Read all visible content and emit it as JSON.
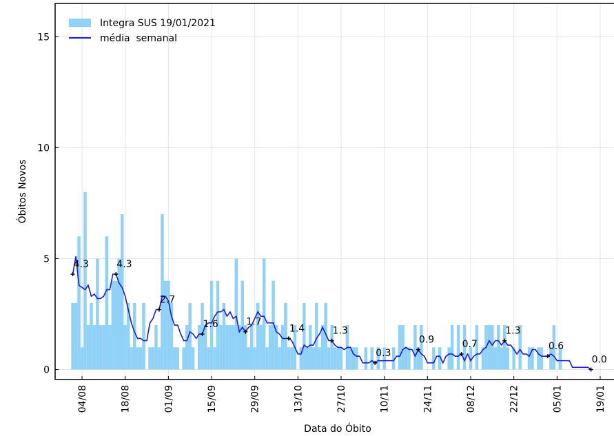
{
  "chart_data": {
    "type": "bar_line",
    "xlabel": "Data do Óbito",
    "ylabel": "Óbitos Novos",
    "categories": [
      null,
      null,
      null,
      "04/08",
      null,
      null,
      null,
      null,
      null,
      null,
      null,
      null,
      null,
      null,
      null,
      null,
      null,
      "18/08",
      null,
      null,
      null,
      null,
      null,
      null,
      null,
      null,
      null,
      null,
      null,
      null,
      null,
      "01/09",
      null,
      null,
      null,
      null,
      null,
      null,
      null,
      null,
      null,
      null,
      null,
      null,
      null,
      "15/09",
      null,
      null,
      null,
      null,
      null,
      null,
      null,
      null,
      null,
      null,
      null,
      null,
      null,
      "29/09",
      null,
      null,
      null,
      null,
      null,
      null,
      null,
      null,
      null,
      null,
      null,
      null,
      null,
      "13/10",
      null,
      null,
      null,
      null,
      null,
      null,
      null,
      null,
      null,
      null,
      null,
      null,
      null,
      "27/10",
      null,
      null,
      null,
      null,
      null,
      null,
      null,
      null,
      null,
      null,
      null,
      null,
      null,
      "10/11",
      null,
      null,
      null,
      null,
      null,
      null,
      null,
      null,
      null,
      null,
      null,
      null,
      null,
      "24/11",
      null,
      null,
      null,
      null,
      null,
      null,
      null,
      null,
      null,
      null,
      null,
      null,
      null,
      "08/12",
      null,
      null,
      null,
      null,
      null,
      null,
      null,
      null,
      null,
      null,
      null,
      null,
      null,
      "22/12",
      null,
      null,
      null,
      null,
      null,
      null,
      null,
      null,
      null,
      null,
      null,
      null,
      null,
      "05/01",
      null,
      null,
      null,
      null,
      null,
      null,
      null,
      null,
      null,
      null,
      null,
      null,
      null,
      "19/01"
    ],
    "series": [
      {
        "name": "Integra SUS 19/01/2021",
        "type": "bar",
        "color": "#8fd1f7",
        "values": [
          3,
          3,
          6,
          1,
          8,
          2,
          3,
          2,
          5,
          2,
          2,
          6,
          2,
          4,
          4,
          5,
          7,
          2,
          3,
          1,
          3,
          1,
          1,
          3,
          0,
          1,
          1,
          2,
          1,
          7,
          4,
          4,
          3,
          1,
          1,
          0,
          1,
          2,
          3,
          1,
          0,
          2,
          3,
          2,
          1,
          4,
          1,
          4,
          2,
          3,
          2,
          2,
          2,
          5,
          2,
          4,
          2,
          1,
          2,
          1,
          3,
          2,
          5,
          1,
          2,
          4,
          2,
          1,
          2,
          3,
          1,
          1,
          2,
          0,
          1,
          3,
          1,
          2,
          1,
          3,
          1,
          2,
          3,
          1,
          2,
          1,
          1,
          1,
          0,
          2,
          1,
          1,
          1,
          0,
          0,
          1,
          0,
          1,
          0,
          1,
          0,
          1,
          0,
          0,
          1,
          0,
          2,
          2,
          1,
          1,
          0,
          2,
          1,
          2,
          0,
          0,
          0,
          1,
          0,
          1,
          0,
          0,
          1,
          2,
          0,
          2,
          0,
          2,
          0,
          1,
          0,
          2,
          0,
          1,
          2,
          2,
          2,
          1,
          2,
          1,
          2,
          1,
          0,
          1,
          0,
          2,
          0,
          0,
          1,
          1,
          0,
          1,
          1,
          0,
          0,
          1,
          2,
          0,
          1,
          0,
          0,
          0,
          0,
          0,
          0,
          0,
          0,
          0,
          0,
          0,
          0,
          null
        ]
      },
      {
        "name": "média  semanal",
        "type": "line",
        "color": "#1a1ae6",
        "values": [
          4.3,
          5.1,
          3.8,
          3.7,
          3.6,
          3.8,
          3.3,
          3.4,
          3.2,
          3.2,
          3.3,
          3.6,
          3.6,
          4.3,
          4.3,
          3.9,
          3.7,
          3.3,
          2.7,
          2.1,
          1.7,
          1.4,
          1.4,
          1.3,
          1.3,
          2.1,
          2.3,
          2.7,
          2.7,
          3.3,
          3.3,
          3.1,
          2.4,
          2.0,
          2.0,
          1.6,
          1.3,
          1.3,
          1.7,
          1.6,
          1.4,
          1.6,
          1.6,
          2.0,
          2.1,
          2.1,
          2.4,
          2.6,
          2.6,
          2.7,
          2.4,
          2.6,
          2.3,
          2.4,
          1.7,
          1.9,
          1.7,
          1.9,
          2.0,
          2.3,
          2.6,
          2.4,
          2.4,
          2.1,
          2.1,
          2.1,
          1.7,
          1.6,
          1.4,
          1.4,
          1.4,
          1.3,
          1.0,
          0.7,
          0.7,
          1.1,
          1.0,
          1.1,
          1.1,
          1.4,
          1.6,
          1.9,
          1.6,
          1.3,
          1.3,
          1.1,
          1.0,
          1.0,
          0.9,
          1.0,
          1.0,
          0.7,
          0.6,
          0.6,
          0.3,
          0.3,
          0.3,
          0.4,
          0.3,
          0.4,
          0.4,
          0.4,
          0.4,
          0.4,
          0.4,
          0.6,
          0.6,
          0.9,
          1.0,
          0.9,
          0.9,
          0.6,
          0.9,
          0.7,
          0.6,
          0.3,
          0.3,
          0.3,
          0.6,
          0.6,
          0.3,
          0.6,
          0.7,
          0.7,
          0.6,
          0.6,
          0.7,
          0.4,
          0.7,
          0.4,
          0.6,
          0.7,
          0.7,
          0.9,
          1.0,
          1.3,
          1.1,
          1.3,
          1.3,
          1.1,
          1.3,
          1.1,
          1.1,
          0.9,
          0.7,
          0.9,
          0.7,
          0.7,
          0.6,
          0.9,
          0.9,
          0.7,
          0.6,
          0.6,
          0.6,
          0.7,
          0.6,
          0.4,
          0.4,
          0.4,
          0.4,
          0.4,
          0.1,
          0.1,
          0.1,
          0.1,
          0.1,
          0.1,
          0.0,
          null,
          null,
          null
        ],
        "value_labels": [
          "4.3",
          null,
          null,
          null,
          null,
          null,
          null,
          null,
          null,
          null,
          null,
          null,
          null,
          null,
          "4.3",
          null,
          null,
          null,
          null,
          null,
          null,
          null,
          null,
          null,
          null,
          null,
          null,
          null,
          "2.7",
          null,
          null,
          null,
          null,
          null,
          null,
          null,
          null,
          null,
          null,
          null,
          null,
          null,
          "1.6",
          null,
          null,
          null,
          null,
          null,
          null,
          null,
          null,
          null,
          null,
          null,
          null,
          null,
          "1.7",
          null,
          null,
          null,
          null,
          null,
          null,
          null,
          null,
          null,
          null,
          null,
          null,
          null,
          "1.4",
          null,
          null,
          null,
          null,
          null,
          null,
          null,
          null,
          null,
          null,
          null,
          null,
          null,
          "1.3",
          null,
          null,
          null,
          null,
          null,
          null,
          null,
          null,
          null,
          null,
          null,
          null,
          null,
          "0.3",
          null,
          null,
          null,
          null,
          null,
          null,
          null,
          null,
          null,
          null,
          null,
          null,
          null,
          "0.9",
          null,
          null,
          null,
          null,
          null,
          null,
          null,
          null,
          null,
          null,
          null,
          null,
          null,
          "0.7",
          null,
          null,
          null,
          null,
          null,
          null,
          null,
          null,
          null,
          null,
          null,
          null,
          null,
          "1.3",
          null,
          null,
          null,
          null,
          null,
          null,
          null,
          null,
          null,
          null,
          null,
          null,
          null,
          "0.6",
          null,
          null,
          null,
          null,
          null,
          null,
          null,
          null,
          null,
          null,
          null,
          null,
          null,
          "0.0",
          null,
          null,
          null
        ]
      }
    ],
    "ylim": [
      -0.45,
      16.5
    ],
    "yticks": [
      0,
      5,
      10,
      15
    ],
    "grid": true,
    "legend": "upper left"
  }
}
